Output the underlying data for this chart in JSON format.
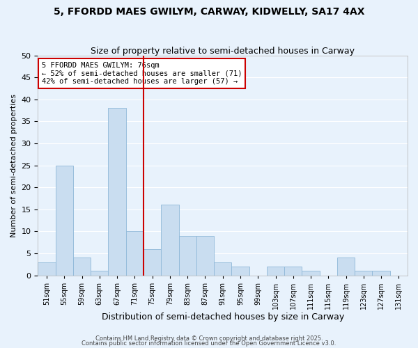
{
  "title": "5, FFORDD MAES GWILYM, CARWAY, KIDWELLY, SA17 4AX",
  "subtitle": "Size of property relative to semi-detached houses in Carway",
  "xlabel": "Distribution of semi-detached houses by size in Carway",
  "ylabel": "Number of semi-detached properties",
  "bin_labels": [
    "51sqm",
    "55sqm",
    "59sqm",
    "63sqm",
    "67sqm",
    "71sqm",
    "75sqm",
    "79sqm",
    "83sqm",
    "87sqm",
    "91sqm",
    "95sqm",
    "99sqm",
    "103sqm",
    "107sqm",
    "111sqm",
    "115sqm",
    "119sqm",
    "123sqm",
    "127sqm",
    "131sqm"
  ],
  "bin_starts": [
    51,
    55,
    59,
    63,
    67,
    71,
    75,
    79,
    83,
    87,
    91,
    95,
    99,
    103,
    107,
    111,
    115,
    119,
    123,
    127,
    131
  ],
  "bar_heights": [
    3,
    25,
    4,
    1,
    38,
    10,
    6,
    16,
    9,
    9,
    3,
    2,
    0,
    2,
    2,
    1,
    0,
    4,
    1,
    1,
    0
  ],
  "bar_color": "#c9ddf0",
  "bar_edge_color": "#8fb8d8",
  "bg_color": "#e8f2fc",
  "grid_color": "#ffffff",
  "property_line_x": 75,
  "annotation_title": "5 FFORDD MAES GWILYM: 76sqm",
  "annotation_line1": "← 52% of semi-detached houses are smaller (71)",
  "annotation_line2": "42% of semi-detached houses are larger (57) →",
  "annotation_box_color": "#cc0000",
  "ylim": [
    0,
    50
  ],
  "yticks": [
    0,
    5,
    10,
    15,
    20,
    25,
    30,
    35,
    40,
    45,
    50
  ],
  "footer1": "Contains HM Land Registry data © Crown copyright and database right 2025.",
  "footer2": "Contains public sector information licensed under the Open Government Licence v3.0.",
  "title_fontsize": 10,
  "subtitle_fontsize": 9
}
